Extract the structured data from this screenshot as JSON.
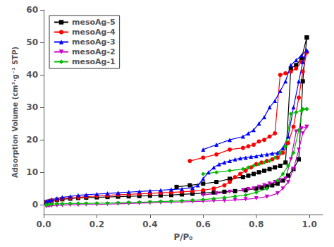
{
  "chart_data": {
    "type": "line",
    "x_label": "P/P₀",
    "y_label": "Adsorption Volume (cm³·g⁻¹ STP)",
    "xlim": [
      0.0,
      1.05
    ],
    "ylim": [
      -3,
      60
    ],
    "xticks": [
      {
        "value": 0,
        "label": "0.0"
      },
      0.2,
      0.4,
      0.6,
      0.8,
      {
        "value": 1,
        "label": "1.0"
      }
    ],
    "yticks": [
      0,
      10,
      20,
      30,
      40,
      50,
      60
    ],
    "grid": false,
    "legend": "upper left",
    "series": [
      {
        "name": "mesoAg-5",
        "color": "#000000",
        "marker": "square",
        "x": [
          0.01,
          0.02,
          0.03,
          0.05,
          0.07,
          0.1,
          0.13,
          0.16,
          0.2,
          0.24,
          0.28,
          0.32,
          0.36,
          0.4,
          0.44,
          0.48,
          0.52,
          0.56,
          0.6,
          0.64,
          0.68,
          0.72,
          0.76,
          0.8,
          0.82,
          0.84,
          0.86,
          0.88,
          0.9,
          0.92,
          0.94,
          0.96,
          0.975,
          0.99,
          0.99,
          0.97,
          0.95,
          0.93,
          0.91,
          0.89,
          0.87,
          0.85,
          0.83,
          0.81,
          0.79,
          0.77,
          0.75,
          0.7,
          0.65,
          0.6,
          0.55,
          0.5
        ],
        "values": [
          0.8,
          1.0,
          1.2,
          1.5,
          1.7,
          1.9,
          2.1,
          2.2,
          2.3,
          2.4,
          2.5,
          2.6,
          2.7,
          2.8,
          2.9,
          3.0,
          3.2,
          3.4,
          3.6,
          3.8,
          4.0,
          4.2,
          4.5,
          5.0,
          5.3,
          5.6,
          6.0,
          6.5,
          7.5,
          9.0,
          11.0,
          14.0,
          38.0,
          51.5,
          51.5,
          45.0,
          43.0,
          42.0,
          13.0,
          12.0,
          11.5,
          11.0,
          10.5,
          10.0,
          9.5,
          9.0,
          8.5,
          8.0,
          7.0,
          6.5,
          6.0,
          5.5
        ]
      },
      {
        "name": "mesoAg-4",
        "color": "#ff0000",
        "marker": "circle",
        "x": [
          0.01,
          0.02,
          0.03,
          0.05,
          0.07,
          0.1,
          0.13,
          0.16,
          0.2,
          0.24,
          0.28,
          0.32,
          0.36,
          0.4,
          0.44,
          0.48,
          0.52,
          0.56,
          0.6,
          0.64,
          0.68,
          0.7,
          0.72,
          0.74,
          0.76,
          0.78,
          0.8,
          0.82,
          0.84,
          0.86,
          0.88,
          0.9,
          0.92,
          0.94,
          0.96,
          0.975,
          0.99,
          0.99,
          0.97,
          0.95,
          0.93,
          0.91,
          0.89,
          0.87,
          0.85,
          0.83,
          0.81,
          0.79,
          0.77,
          0.75,
          0.7,
          0.65,
          0.6,
          0.55
        ],
        "values": [
          0.8,
          1.0,
          1.3,
          1.6,
          1.9,
          2.1,
          2.3,
          2.5,
          2.7,
          2.9,
          3.1,
          3.2,
          3.4,
          3.5,
          3.7,
          3.8,
          4.0,
          4.2,
          4.5,
          5.0,
          6.0,
          7.0,
          8.5,
          9.5,
          10.5,
          11.5,
          12.5,
          13.0,
          13.5,
          14.0,
          14.5,
          16.0,
          19.0,
          24.0,
          33.0,
          41.0,
          47.0,
          47.0,
          44.0,
          42.0,
          41.0,
          40.5,
          40.0,
          22.0,
          21.0,
          20.0,
          19.5,
          18.5,
          18.0,
          17.5,
          17.0,
          15.5,
          14.5,
          13.5
        ]
      },
      {
        "name": "mesoAg-3",
        "color": "#0000ff",
        "marker": "triangle-up",
        "x": [
          0.01,
          0.02,
          0.03,
          0.05,
          0.07,
          0.1,
          0.13,
          0.16,
          0.2,
          0.24,
          0.28,
          0.32,
          0.36,
          0.4,
          0.44,
          0.48,
          0.52,
          0.56,
          0.58,
          0.6,
          0.62,
          0.64,
          0.66,
          0.68,
          0.7,
          0.72,
          0.74,
          0.76,
          0.78,
          0.8,
          0.82,
          0.84,
          0.86,
          0.88,
          0.9,
          0.92,
          0.94,
          0.96,
          0.975,
          0.99,
          0.99,
          0.97,
          0.95,
          0.93,
          0.91,
          0.89,
          0.87,
          0.85,
          0.83,
          0.81,
          0.79,
          0.77,
          0.75,
          0.7,
          0.65,
          0.6
        ],
        "values": [
          1.0,
          1.3,
          1.6,
          2.0,
          2.3,
          2.6,
          2.9,
          3.1,
          3.3,
          3.5,
          3.7,
          3.9,
          4.1,
          4.3,
          4.5,
          4.7,
          4.9,
          5.2,
          6.0,
          8.0,
          10.0,
          11.5,
          12.5,
          13.0,
          13.5,
          14.0,
          14.3,
          14.5,
          14.8,
          15.0,
          15.3,
          15.5,
          15.8,
          16.0,
          17.5,
          21.0,
          30.0,
          38.0,
          44.0,
          47.5,
          47.5,
          46.0,
          44.5,
          43.0,
          38.0,
          35.0,
          32.0,
          30.0,
          27.0,
          25.0,
          23.0,
          22.0,
          21.0,
          20.0,
          18.5,
          17.0
        ]
      },
      {
        "name": "mesoAg-2",
        "color": "#cc00cc",
        "marker": "triangle-down",
        "x": [
          0.01,
          0.02,
          0.03,
          0.05,
          0.07,
          0.1,
          0.13,
          0.16,
          0.2,
          0.24,
          0.28,
          0.32,
          0.36,
          0.4,
          0.44,
          0.48,
          0.52,
          0.56,
          0.6,
          0.64,
          0.68,
          0.72,
          0.76,
          0.8,
          0.84,
          0.88,
          0.9,
          0.92,
          0.94,
          0.96,
          0.975,
          0.99,
          0.99,
          0.97,
          0.95,
          0.93,
          0.91,
          0.89,
          0.87,
          0.85,
          0.83,
          0.81,
          0.79,
          0.77,
          0.75,
          0.7,
          0.65,
          0.6
        ],
        "values": [
          -0.5,
          -0.4,
          -0.3,
          -0.2,
          -0.1,
          0.0,
          0.0,
          0.1,
          0.1,
          0.2,
          0.3,
          0.4,
          0.5,
          0.6,
          0.7,
          0.8,
          0.9,
          1.0,
          1.1,
          1.2,
          1.3,
          1.5,
          1.7,
          2.0,
          2.5,
          3.5,
          5.0,
          7.0,
          11.0,
          17.0,
          22.0,
          24.0,
          24.0,
          23.5,
          22.5,
          14.0,
          8.0,
          7.5,
          7.0,
          6.5,
          6.0,
          5.5,
          5.0,
          4.8,
          4.5,
          4.0,
          3.5,
          3.0
        ]
      },
      {
        "name": "mesoAg-1",
        "color": "#00bb00",
        "marker": "diamond",
        "x": [
          0.01,
          0.02,
          0.03,
          0.05,
          0.07,
          0.1,
          0.13,
          0.16,
          0.2,
          0.24,
          0.28,
          0.32,
          0.36,
          0.4,
          0.44,
          0.48,
          0.52,
          0.56,
          0.6,
          0.64,
          0.68,
          0.72,
          0.76,
          0.8,
          0.84,
          0.88,
          0.9,
          0.92,
          0.94,
          0.96,
          0.975,
          0.99,
          0.99,
          0.97,
          0.95,
          0.93,
          0.91,
          0.89,
          0.87,
          0.85,
          0.83,
          0.81,
          0.79,
          0.77,
          0.75,
          0.7,
          0.65,
          0.6
        ],
        "values": [
          0.0,
          0.1,
          0.2,
          0.3,
          0.3,
          0.4,
          0.4,
          0.4,
          0.5,
          0.5,
          0.6,
          0.7,
          0.8,
          0.9,
          1.0,
          1.1,
          1.2,
          1.4,
          1.6,
          1.9,
          2.2,
          2.6,
          3.0,
          3.8,
          5.0,
          7.5,
          9.5,
          12.0,
          16.0,
          23.0,
          29.5,
          29.5,
          29.5,
          29.0,
          28.5,
          28.0,
          18.0,
          16.0,
          14.5,
          13.5,
          13.0,
          12.5,
          12.0,
          11.5,
          11.0,
          10.5,
          10.0,
          9.5
        ]
      }
    ]
  }
}
